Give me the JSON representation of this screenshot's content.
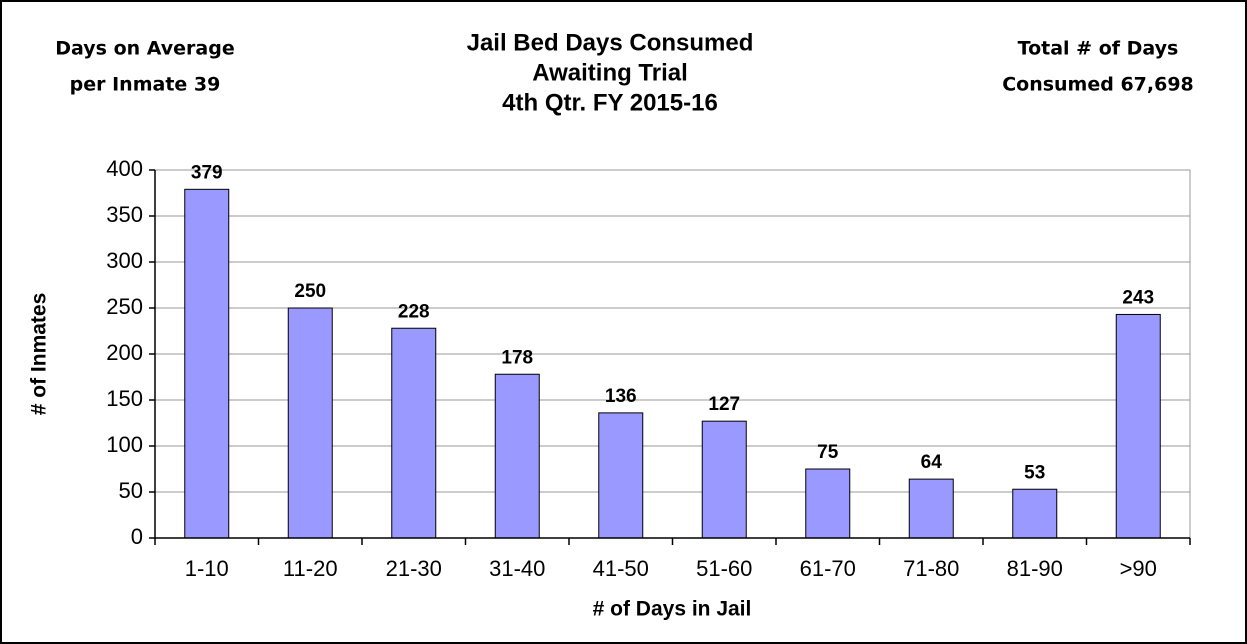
{
  "chart_data": {
    "type": "bar",
    "title": [
      "Jail Bed Days Consumed",
      "Awaiting Trial",
      "4th Qtr. FY 2015-16"
    ],
    "annotations": [
      [
        "Days on Average",
        "per Inmate 39"
      ],
      [
        "Total # of Days",
        "Consumed 67,698"
      ]
    ],
    "x_label": "# of Days in Jail",
    "y_label": "# of Inmates",
    "categories": [
      "1-10",
      "11-20",
      "21-30",
      "31-40",
      "41-50",
      "51-60",
      "61-70",
      "71-80",
      "81-90",
      ">90"
    ],
    "values": [
      379,
      250,
      228,
      178,
      136,
      127,
      75,
      64,
      53,
      243
    ],
    "color": "#9999ff",
    "ylim": [
      0,
      400
    ],
    "yticks": [
      0,
      50,
      100,
      150,
      200,
      250,
      300,
      350,
      400
    ],
    "grid": true
  }
}
